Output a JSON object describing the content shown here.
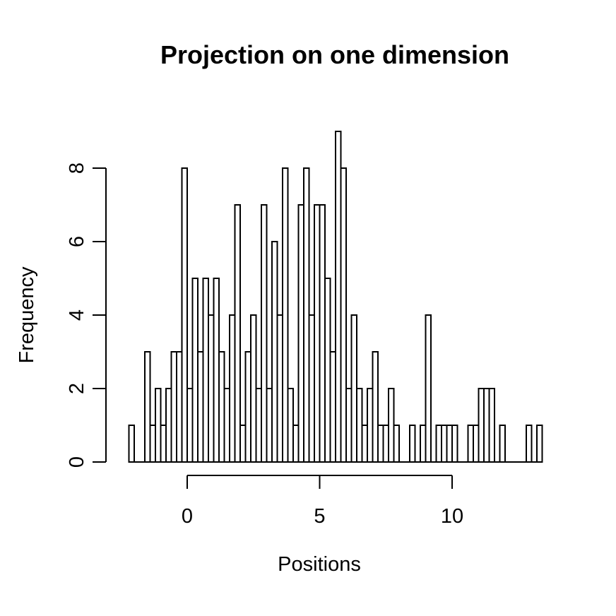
{
  "title": "Projection on one dimension",
  "chart_data": {
    "type": "bar",
    "subtype": "histogram",
    "title": "Projection on one dimension",
    "xlabel": "Positions",
    "ylabel": "Frequency",
    "bin_start": -2.2,
    "bin_width": 0.2,
    "counts": [
      1,
      0,
      0,
      3,
      1,
      2,
      1,
      2,
      3,
      3,
      8,
      2,
      5,
      3,
      5,
      4,
      5,
      3,
      2,
      4,
      7,
      1,
      3,
      4,
      2,
      7,
      2,
      6,
      4,
      8,
      2,
      1,
      7,
      8,
      4,
      7,
      7,
      5,
      3,
      9,
      8,
      2,
      4,
      2,
      1,
      2,
      3,
      1,
      1,
      2,
      1,
      0,
      0,
      1,
      0,
      1,
      4,
      0,
      1,
      1,
      1,
      1,
      0,
      0,
      1,
      1,
      2,
      2,
      2,
      0,
      1,
      0,
      0,
      0,
      0,
      1,
      0,
      1
    ],
    "x_ticks": [
      0,
      5,
      10
    ],
    "y_ticks": [
      0,
      2,
      4,
      6,
      8
    ],
    "xlim": [
      -2.2,
      13.4
    ],
    "ylim": [
      0,
      9
    ],
    "grid": false,
    "legend": "none",
    "bar_fill": "#ffffff",
    "bar_stroke": "#000000",
    "axis_color": "#000000"
  }
}
